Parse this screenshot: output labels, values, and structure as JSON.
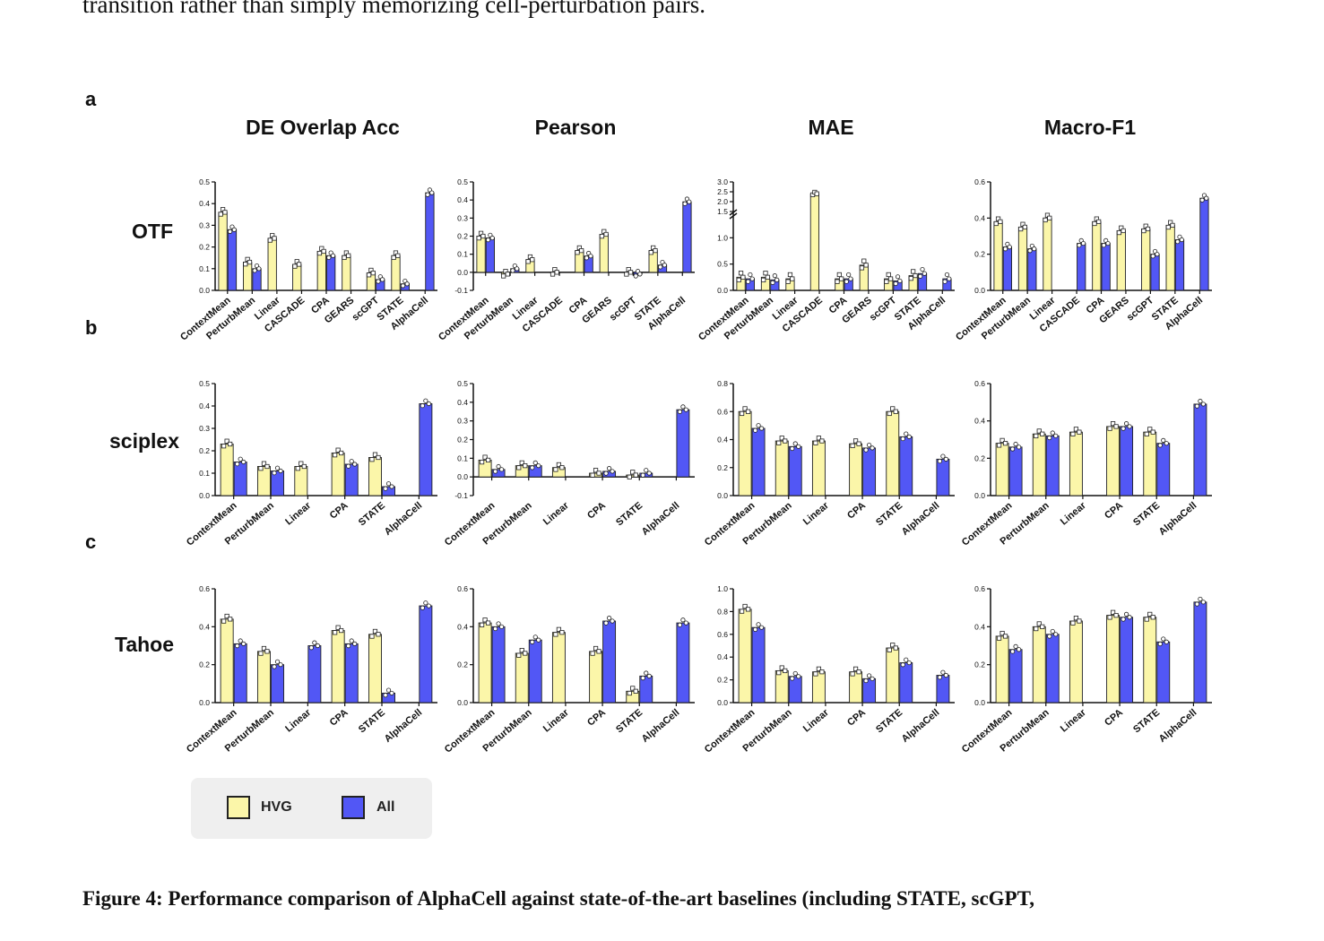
{
  "intro_text": "transition rather than simply memorizing cell-perturbation pairs.",
  "caption": "Figure 4: Performance comparison of AlphaCell against state-of-the-art baselines (including STATE, scGPT,",
  "panel_letters": [
    "a",
    "b",
    "c"
  ],
  "metrics": [
    "DE Overlap Acc",
    "Pearson",
    "MAE",
    "Macro-F1"
  ],
  "datasets": [
    "OTF",
    "sciplex",
    "Tahoe"
  ],
  "legend": {
    "hvg_label": "HVG",
    "all_label": "All"
  },
  "colors": {
    "hvg": "#fbf6a9",
    "all": "#5257f5",
    "axis": "#111111"
  },
  "chart_data": [
    {
      "type": "bar",
      "dataset": "OTF",
      "metric": "DE Overlap Acc",
      "categories": [
        "ContextMean",
        "PerturbMean",
        "Linear",
        "CASCADE",
        "CPA",
        "GEARS",
        "scGPT",
        "STATE",
        "AlphaCell"
      ],
      "series": [
        {
          "name": "HVG",
          "values": [
            0.36,
            0.13,
            0.24,
            0.12,
            0.18,
            0.16,
            0.08,
            0.16,
            null
          ]
        },
        {
          "name": "All",
          "values": [
            0.28,
            0.1,
            null,
            null,
            0.16,
            null,
            0.05,
            0.03,
            0.45
          ]
        }
      ],
      "ylim": [
        0,
        0.5
      ],
      "yticks": [
        "0.0",
        "0.1",
        "0.2",
        "0.3",
        "0.4",
        "0.5"
      ]
    },
    {
      "type": "bar",
      "dataset": "OTF",
      "metric": "Pearson",
      "categories": [
        "ContextMean",
        "PerturbMean",
        "Linear",
        "CASCADE",
        "CPA",
        "GEARS",
        "scGPT",
        "STATE",
        "AlphaCell"
      ],
      "series": [
        {
          "name": "HVG",
          "values": [
            0.2,
            -0.01,
            0.07,
            0.0,
            0.12,
            0.21,
            0.0,
            0.12,
            null
          ]
        },
        {
          "name": "All",
          "values": [
            0.19,
            0.02,
            null,
            null,
            0.09,
            null,
            -0.01,
            0.04,
            0.39
          ]
        }
      ],
      "ylim": [
        -0.1,
        0.5
      ],
      "yticks": [
        "-0.1",
        "0.0",
        "0.1",
        "0.2",
        "0.3",
        "0.4",
        "0.5"
      ]
    },
    {
      "type": "bar",
      "dataset": "OTF",
      "metric": "MAE",
      "categories": [
        "ContextMean",
        "PerturbMean",
        "Linear",
        "CASCADE",
        "CPA",
        "GEARS",
        "scGPT",
        "STATE",
        "AlphaCell"
      ],
      "series": [
        {
          "name": "HVG",
          "values": [
            0.25,
            0.25,
            0.22,
            2.4,
            0.22,
            0.48,
            0.22,
            0.28,
            null
          ]
        },
        {
          "name": "All",
          "values": [
            0.22,
            0.2,
            null,
            null,
            0.22,
            null,
            0.18,
            0.32,
            0.22
          ]
        }
      ],
      "ylim": [
        0,
        3.0
      ],
      "axis_break": [
        1.5,
        1.5
      ],
      "yticks": [
        "0.0",
        "0.5",
        "1.0",
        "1.5",
        "2.0",
        "2.5",
        "3.0"
      ]
    },
    {
      "type": "bar",
      "dataset": "OTF",
      "metric": "Macro-F1",
      "categories": [
        "ContextMean",
        "PerturbMean",
        "Linear",
        "CASCADE",
        "CPA",
        "GEARS",
        "scGPT",
        "STATE",
        "AlphaCell"
      ],
      "series": [
        {
          "name": "HVG",
          "values": [
            0.38,
            0.35,
            0.4,
            null,
            0.38,
            0.33,
            0.34,
            0.36,
            null
          ]
        },
        {
          "name": "All",
          "values": [
            0.24,
            0.23,
            null,
            0.26,
            0.26,
            null,
            0.2,
            0.28,
            0.51
          ]
        }
      ],
      "ylim": [
        0,
        0.6
      ],
      "yticks": [
        "0.0",
        "0.2",
        "0.4",
        "0.6"
      ]
    },
    {
      "type": "bar",
      "dataset": "sciplex",
      "metric": "DE Overlap Acc",
      "categories": [
        "ContextMean",
        "PerturbMean",
        "Linear",
        "CPA",
        "STATE",
        "AlphaCell"
      ],
      "series": [
        {
          "name": "HVG",
          "values": [
            0.23,
            0.13,
            0.13,
            0.19,
            0.17,
            null
          ]
        },
        {
          "name": "All",
          "values": [
            0.15,
            0.11,
            null,
            0.14,
            0.04,
            0.41
          ]
        }
      ],
      "ylim": [
        0,
        0.5
      ],
      "yticks": [
        "0.0",
        "0.1",
        "0.2",
        "0.3",
        "0.4",
        "0.5"
      ]
    },
    {
      "type": "bar",
      "dataset": "sciplex",
      "metric": "Pearson",
      "categories": [
        "ContextMean",
        "PerturbMean",
        "Linear",
        "CPA",
        "STATE",
        "AlphaCell"
      ],
      "series": [
        {
          "name": "HVG",
          "values": [
            0.09,
            0.06,
            0.05,
            0.02,
            0.01,
            null
          ]
        },
        {
          "name": "All",
          "values": [
            0.04,
            0.06,
            null,
            0.03,
            0.02,
            0.36
          ]
        }
      ],
      "ylim": [
        -0.1,
        0.5
      ],
      "yticks": [
        "-0.1",
        "0.0",
        "0.1",
        "0.2",
        "0.3",
        "0.4",
        "0.5"
      ]
    },
    {
      "type": "bar",
      "dataset": "sciplex",
      "metric": "MAE",
      "categories": [
        "ContextMean",
        "PerturbMean",
        "Linear",
        "CPA",
        "STATE",
        "AlphaCell"
      ],
      "series": [
        {
          "name": "HVG",
          "values": [
            0.6,
            0.39,
            0.39,
            0.37,
            0.6,
            null
          ]
        },
        {
          "name": "All",
          "values": [
            0.48,
            0.35,
            null,
            0.34,
            0.42,
            0.26
          ]
        }
      ],
      "ylim": [
        0,
        0.8
      ],
      "yticks": [
        "0.0",
        "0.2",
        "0.4",
        "0.6",
        "0.8"
      ]
    },
    {
      "type": "bar",
      "dataset": "sciplex",
      "metric": "Macro-F1",
      "categories": [
        "ContextMean",
        "PerturbMean",
        "Linear",
        "CPA",
        "STATE",
        "AlphaCell"
      ],
      "series": [
        {
          "name": "HVG",
          "values": [
            0.28,
            0.33,
            0.34,
            0.37,
            0.34,
            null
          ]
        },
        {
          "name": "All",
          "values": [
            0.26,
            0.32,
            null,
            0.37,
            0.28,
            0.49
          ]
        }
      ],
      "ylim": [
        0,
        0.6
      ],
      "yticks": [
        "0.0",
        "0.2",
        "0.4",
        "0.6"
      ]
    },
    {
      "type": "bar",
      "dataset": "Tahoe",
      "metric": "DE Overlap Acc",
      "categories": [
        "ContextMean",
        "PerturbMean",
        "Linear",
        "CPA",
        "STATE",
        "AlphaCell"
      ],
      "series": [
        {
          "name": "HVG",
          "values": [
            0.44,
            0.27,
            null,
            0.38,
            0.36,
            null
          ]
        },
        {
          "name": "All",
          "values": [
            0.31,
            0.2,
            0.3,
            0.31,
            0.05,
            0.51
          ]
        }
      ],
      "ylim": [
        0,
        0.6
      ],
      "yticks": [
        "0.0",
        "0.2",
        "0.4",
        "0.6"
      ]
    },
    {
      "type": "bar",
      "dataset": "Tahoe",
      "metric": "Pearson",
      "categories": [
        "ContextMean",
        "PerturbMean",
        "Linear",
        "CPA",
        "STATE",
        "AlphaCell"
      ],
      "series": [
        {
          "name": "HVG",
          "values": [
            0.42,
            0.26,
            0.37,
            0.27,
            0.06,
            null
          ]
        },
        {
          "name": "All",
          "values": [
            0.4,
            0.33,
            null,
            0.43,
            0.14,
            0.42
          ]
        }
      ],
      "ylim": [
        0,
        0.6
      ],
      "yticks": [
        "0.0",
        "0.2",
        "0.4",
        "0.6"
      ]
    },
    {
      "type": "bar",
      "dataset": "Tahoe",
      "metric": "MAE",
      "categories": [
        "ContextMean",
        "PerturbMean",
        "Linear",
        "CPA",
        "STATE",
        "AlphaCell"
      ],
      "series": [
        {
          "name": "HVG",
          "values": [
            0.82,
            0.28,
            0.27,
            0.27,
            0.48,
            null
          ]
        },
        {
          "name": "All",
          "values": [
            0.66,
            0.23,
            null,
            0.21,
            0.35,
            0.24
          ]
        }
      ],
      "ylim": [
        0,
        1.0
      ],
      "yticks": [
        "0.0",
        "0.2",
        "0.4",
        "0.6",
        "0.8",
        "1.0"
      ]
    },
    {
      "type": "bar",
      "dataset": "Tahoe",
      "metric": "Macro-F1",
      "categories": [
        "ContextMean",
        "PerturbMean",
        "Linear",
        "CPA",
        "STATE",
        "AlphaCell"
      ],
      "series": [
        {
          "name": "HVG",
          "values": [
            0.35,
            0.4,
            0.43,
            0.46,
            0.45,
            null
          ]
        },
        {
          "name": "All",
          "values": [
            0.28,
            0.36,
            null,
            0.45,
            0.32,
            0.53
          ]
        }
      ],
      "ylim": [
        0,
        0.6
      ],
      "yticks": [
        "0.0",
        "0.2",
        "0.4",
        "0.6"
      ]
    }
  ]
}
